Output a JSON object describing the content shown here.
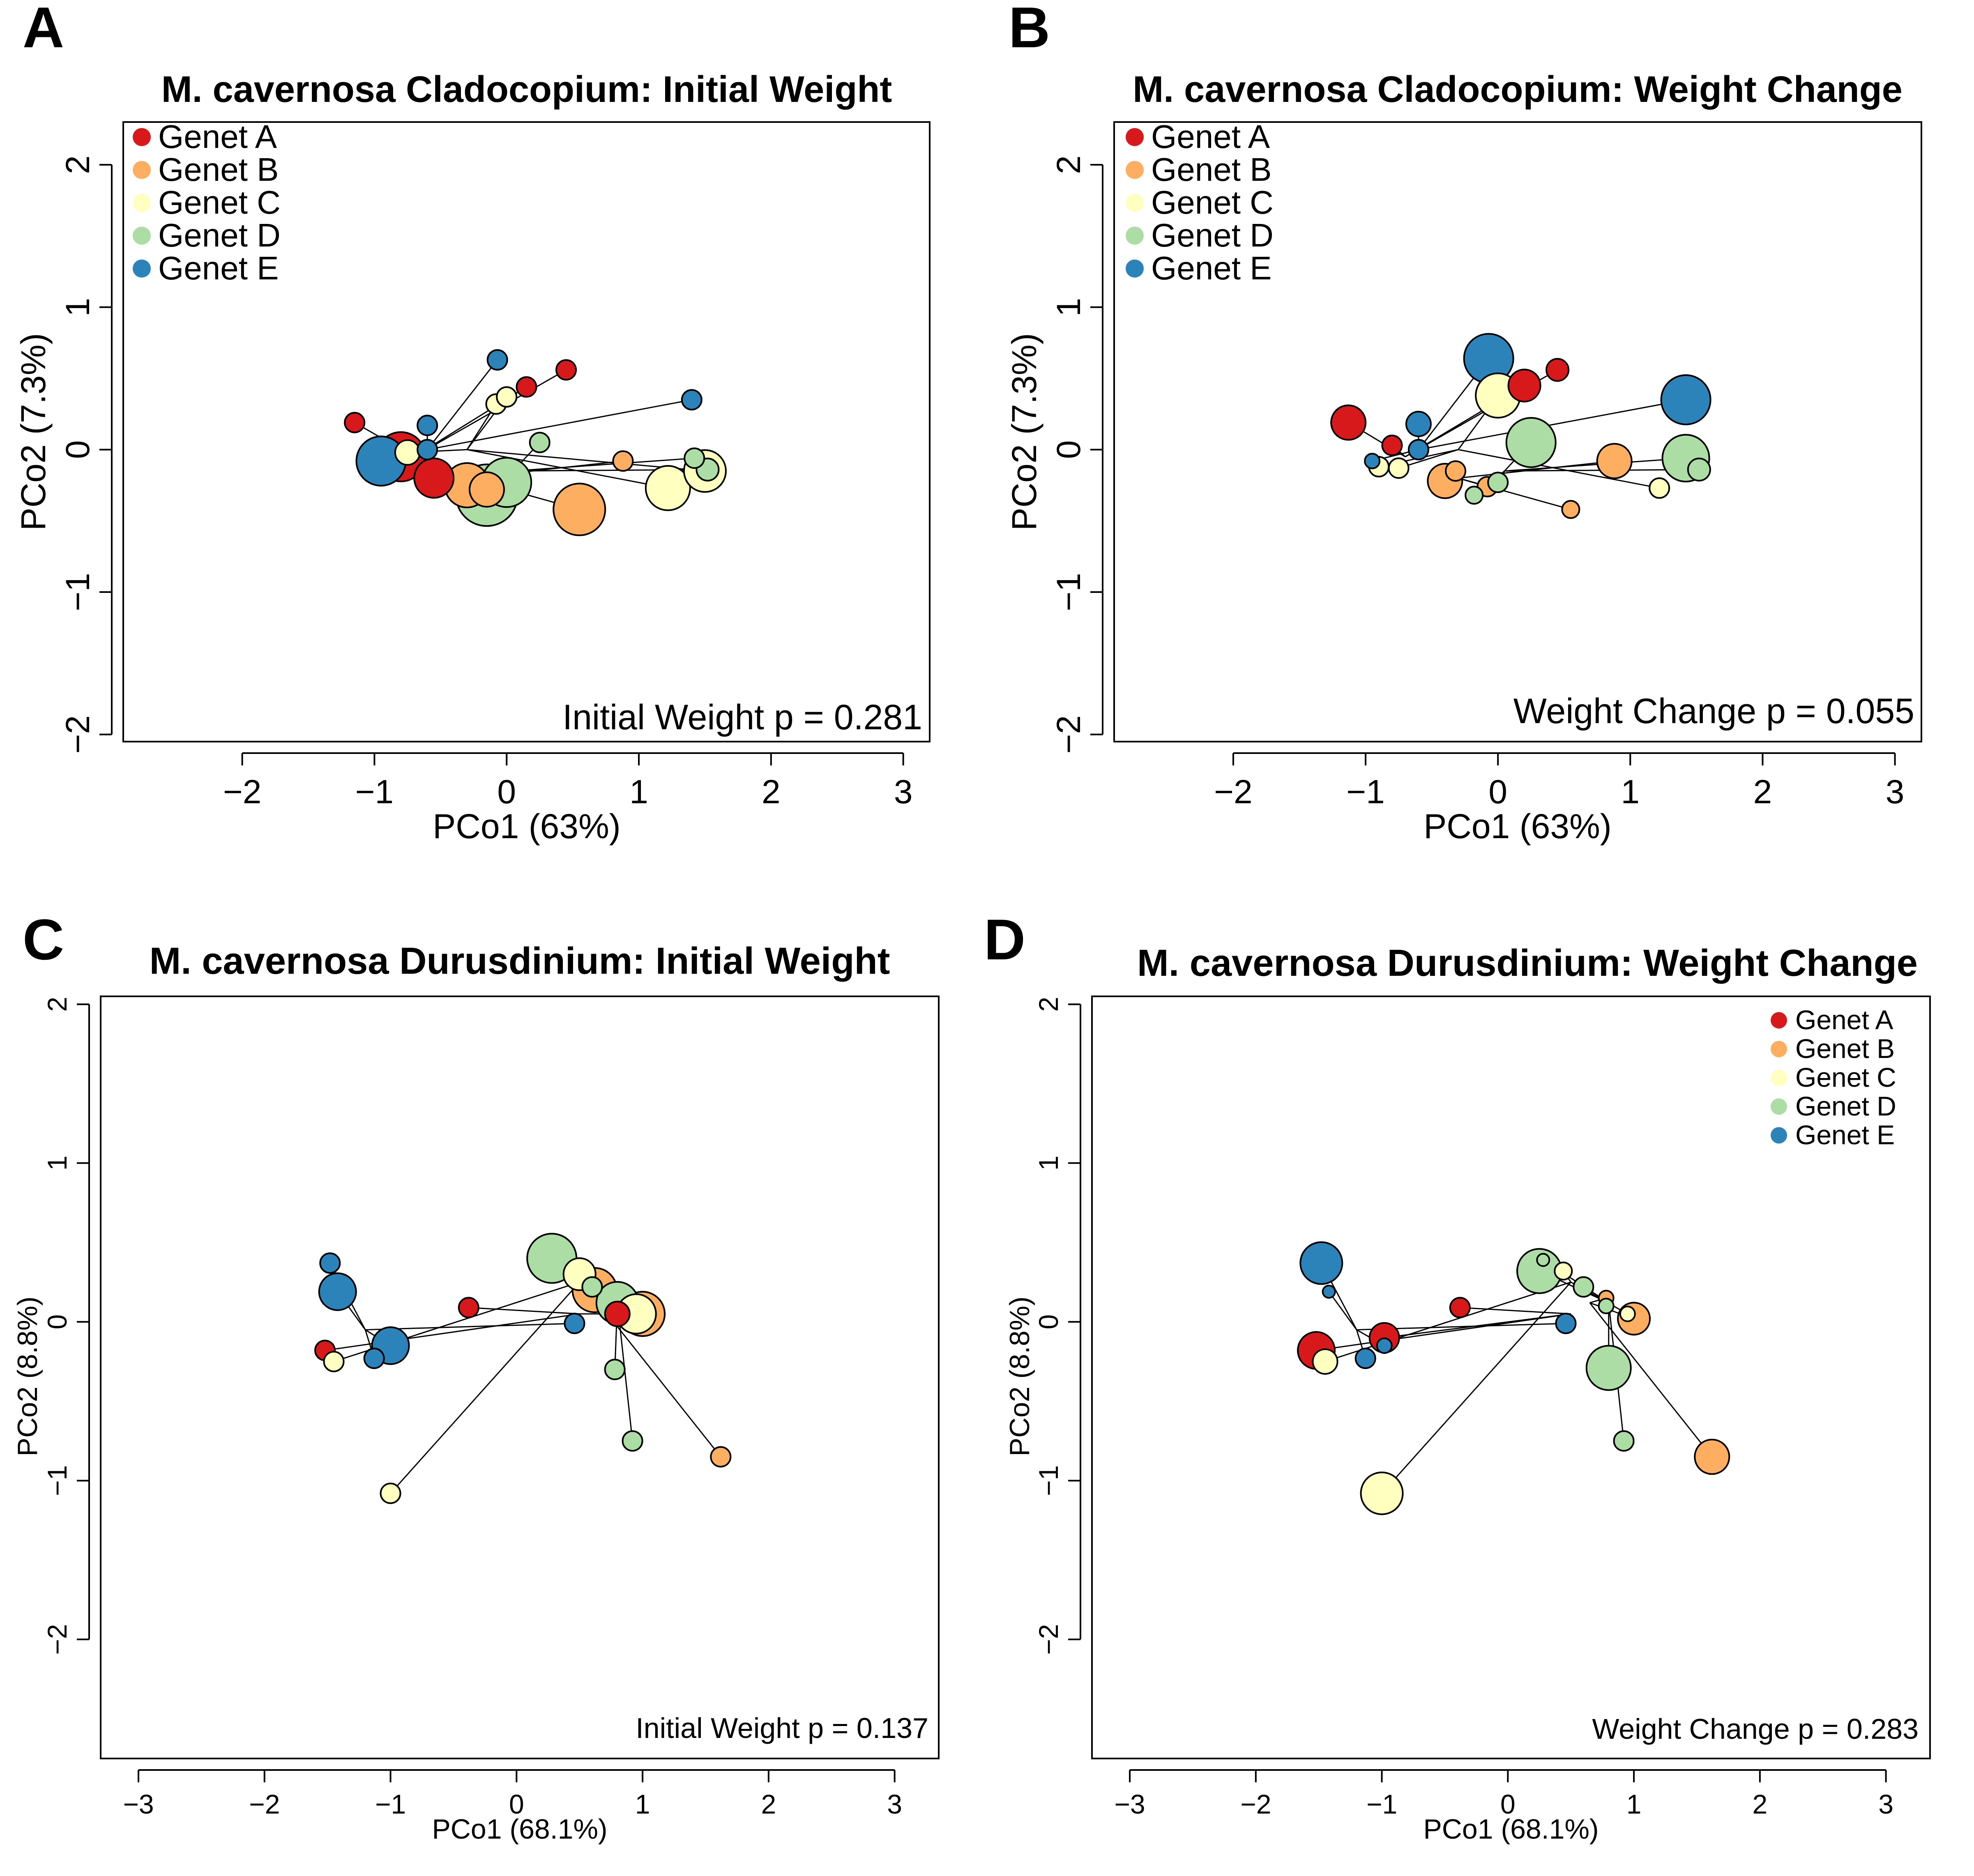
{
  "colors": {
    "Genet A": "#d7191c",
    "Genet B": "#fdae61",
    "Genet C": "#ffffbf",
    "Genet D": "#abdda4",
    "Genet E": "#2b83ba"
  },
  "chart_data": [
    {
      "panel": "A",
      "type": "scatter",
      "title": "M. cavernosa Cladocopium: Initial Weight",
      "xlabel": "PCo1 (63%)",
      "ylabel": "PCo2 (7.3%)",
      "xlim": [
        -2.9,
        3.2
      ],
      "ylim": [
        -2.05,
        2.3
      ],
      "xticks": [
        -2,
        -1,
        0,
        1,
        2,
        3
      ],
      "yticks": [
        -2,
        -1,
        0,
        1,
        2
      ],
      "legend_position": "top-left",
      "legend": [
        "Genet A",
        "Genet B",
        "Genet C",
        "Genet D",
        "Genet E"
      ],
      "annotation": "Initial Weight p =  0.281",
      "grid": false,
      "centroids": [
        {
          "genet": "Genet A",
          "x": -0.7,
          "y": -0.05
        },
        {
          "genet": "Genet B",
          "x": -0.3,
          "y": -0.2
        },
        {
          "genet": "Genet C",
          "x": -0.3,
          "y": 0.0
        },
        {
          "genet": "Genet D",
          "x": 0.05,
          "y": -0.15
        },
        {
          "genet": "Genet E",
          "x": -0.6,
          "y": 0.0
        }
      ],
      "points": [
        {
          "genet": "Genet A",
          "x": -1.15,
          "y": 0.19,
          "size": 0.8
        },
        {
          "genet": "Genet A",
          "x": 0.45,
          "y": 0.56,
          "size": 0.8
        },
        {
          "genet": "Genet A",
          "x": 0.15,
          "y": 0.44,
          "size": 0.8
        },
        {
          "genet": "Genet A",
          "x": -0.8,
          "y": -0.05,
          "size": 2.0
        },
        {
          "genet": "Genet A",
          "x": -0.55,
          "y": -0.2,
          "size": 1.6
        },
        {
          "genet": "Genet B",
          "x": -0.3,
          "y": -0.25,
          "size": 1.8
        },
        {
          "genet": "Genet B",
          "x": -0.15,
          "y": -0.28,
          "size": 1.4
        },
        {
          "genet": "Genet B",
          "x": 0.55,
          "y": -0.42,
          "size": 2.1
        },
        {
          "genet": "Genet B",
          "x": 0.88,
          "y": -0.08,
          "size": 0.8
        },
        {
          "genet": "Genet C",
          "x": -0.75,
          "y": -0.02,
          "size": 1.0
        },
        {
          "genet": "Genet C",
          "x": -0.08,
          "y": 0.32,
          "size": 0.8
        },
        {
          "genet": "Genet C",
          "x": 0.0,
          "y": 0.37,
          "size": 0.8
        },
        {
          "genet": "Genet C",
          "x": 1.22,
          "y": -0.27,
          "size": 1.8
        },
        {
          "genet": "Genet C",
          "x": 1.5,
          "y": -0.15,
          "size": 1.7
        },
        {
          "genet": "Genet D",
          "x": 0.25,
          "y": 0.05,
          "size": 0.8
        },
        {
          "genet": "Genet D",
          "x": 0.0,
          "y": -0.23,
          "size": 2.0
        },
        {
          "genet": "Genet D",
          "x": -0.15,
          "y": -0.32,
          "size": 2.5
        },
        {
          "genet": "Genet D",
          "x": 1.42,
          "y": -0.06,
          "size": 0.8
        },
        {
          "genet": "Genet D",
          "x": 1.52,
          "y": -0.14,
          "size": 0.9
        },
        {
          "genet": "Genet E",
          "x": -0.07,
          "y": 0.63,
          "size": 0.8
        },
        {
          "genet": "Genet E",
          "x": -0.6,
          "y": 0.17,
          "size": 0.8
        },
        {
          "genet": "Genet E",
          "x": -0.6,
          "y": 0.0,
          "size": 0.8
        },
        {
          "genet": "Genet E",
          "x": -0.95,
          "y": -0.08,
          "size": 2.0
        },
        {
          "genet": "Genet E",
          "x": 1.4,
          "y": 0.35,
          "size": 0.8
        }
      ]
    },
    {
      "panel": "B",
      "type": "scatter",
      "title": "M. cavernosa Cladocopium: Weight Change",
      "xlabel": "PCo1 (63%)",
      "ylabel": "PCo2 (7.3%)",
      "xlim": [
        -2.9,
        3.2
      ],
      "ylim": [
        -2.05,
        2.3
      ],
      "xticks": [
        -2,
        -1,
        0,
        1,
        2,
        3
      ],
      "yticks": [
        -2,
        -1,
        0,
        1,
        2
      ],
      "legend_position": "top-left",
      "legend": [
        "Genet A",
        "Genet B",
        "Genet C",
        "Genet D",
        "Genet E"
      ],
      "annotation": "Weight Change p =  0.055",
      "grid": false,
      "centroids": [
        {
          "genet": "Genet A",
          "x": -0.7,
          "y": -0.05
        },
        {
          "genet": "Genet B",
          "x": -0.3,
          "y": -0.2
        },
        {
          "genet": "Genet C",
          "x": -0.3,
          "y": 0.0
        },
        {
          "genet": "Genet D",
          "x": 0.05,
          "y": -0.15
        },
        {
          "genet": "Genet E",
          "x": -0.6,
          "y": 0.0
        }
      ],
      "points": [
        {
          "genet": "Genet A",
          "x": -1.13,
          "y": 0.19,
          "size": 1.4
        },
        {
          "genet": "Genet A",
          "x": 0.45,
          "y": 0.56,
          "size": 0.9
        },
        {
          "genet": "Genet A",
          "x": 0.2,
          "y": 0.45,
          "size": 1.3
        },
        {
          "genet": "Genet A",
          "x": -0.8,
          "y": 0.03,
          "size": 0.8
        },
        {
          "genet": "Genet B",
          "x": -0.4,
          "y": -0.22,
          "size": 1.4
        },
        {
          "genet": "Genet B",
          "x": -0.32,
          "y": -0.15,
          "size": 0.8
        },
        {
          "genet": "Genet B",
          "x": -0.08,
          "y": -0.26,
          "size": 0.8
        },
        {
          "genet": "Genet B",
          "x": 0.55,
          "y": -0.42,
          "size": 0.7
        },
        {
          "genet": "Genet B",
          "x": 0.88,
          "y": -0.08,
          "size": 1.4
        },
        {
          "genet": "Genet C",
          "x": -0.9,
          "y": -0.12,
          "size": 0.8
        },
        {
          "genet": "Genet C",
          "x": -0.75,
          "y": -0.13,
          "size": 0.8
        },
        {
          "genet": "Genet C",
          "x": 0.0,
          "y": 0.38,
          "size": 1.8
        },
        {
          "genet": "Genet C",
          "x": 1.22,
          "y": -0.27,
          "size": 0.8
        },
        {
          "genet": "Genet D",
          "x": 0.25,
          "y": 0.05,
          "size": 2.0
        },
        {
          "genet": "Genet D",
          "x": 0.0,
          "y": -0.23,
          "size": 0.8
        },
        {
          "genet": "Genet D",
          "x": -0.18,
          "y": -0.32,
          "size": 0.7
        },
        {
          "genet": "Genet D",
          "x": 1.42,
          "y": -0.06,
          "size": 1.9
        },
        {
          "genet": "Genet D",
          "x": 1.52,
          "y": -0.14,
          "size": 0.9
        },
        {
          "genet": "Genet E",
          "x": -0.07,
          "y": 0.64,
          "size": 2.0
        },
        {
          "genet": "Genet E",
          "x": -0.6,
          "y": 0.18,
          "size": 1.0
        },
        {
          "genet": "Genet E",
          "x": -0.6,
          "y": 0.0,
          "size": 0.8
        },
        {
          "genet": "Genet E",
          "x": -0.95,
          "y": -0.08,
          "size": 0.6
        },
        {
          "genet": "Genet E",
          "x": 1.42,
          "y": 0.35,
          "size": 2.0
        }
      ]
    },
    {
      "panel": "C",
      "type": "scatter",
      "title": "M. cavernosa Durusdinium: Initial Weight",
      "xlabel": "PCo1 (68.1%)",
      "ylabel": "PCo2 (8.8%)",
      "xlim": [
        -3.3,
        3.35
      ],
      "ylim": [
        -2.75,
        2.05
      ],
      "xticks": [
        -3,
        -2,
        -1,
        0,
        1,
        2,
        3
      ],
      "yticks": [
        -2,
        -1,
        0,
        1,
        2
      ],
      "legend_position": "none",
      "legend": [],
      "annotation": "Initial Weight p =  0.137",
      "grid": false,
      "centroids": [
        {
          "genet": "Genet A",
          "x": 0.5,
          "y": 0.05
        },
        {
          "genet": "Genet B",
          "x": 0.65,
          "y": 0.12
        },
        {
          "genet": "Genet C",
          "x": 0.5,
          "y": 0.25
        },
        {
          "genet": "Genet D",
          "x": 0.8,
          "y": 0.12
        },
        {
          "genet": "Genet E",
          "x": -1.2,
          "y": -0.05
        }
      ],
      "points": [
        {
          "genet": "Genet A",
          "x": -0.38,
          "y": 0.09,
          "size": 0.8
        },
        {
          "genet": "Genet A",
          "x": -1.52,
          "y": -0.18,
          "size": 0.8
        },
        {
          "genet": "Genet A",
          "x": 0.8,
          "y": 0.05,
          "size": 1.0
        },
        {
          "genet": "Genet B",
          "x": 0.62,
          "y": 0.2,
          "size": 1.8
        },
        {
          "genet": "Genet B",
          "x": 1.0,
          "y": 0.05,
          "size": 1.8
        },
        {
          "genet": "Genet B",
          "x": 1.62,
          "y": -0.85,
          "size": 0.8
        },
        {
          "genet": "Genet C",
          "x": -1.45,
          "y": -0.25,
          "size": 0.8
        },
        {
          "genet": "Genet C",
          "x": -1.0,
          "y": -1.08,
          "size": 0.8
        },
        {
          "genet": "Genet C",
          "x": 0.5,
          "y": 0.3,
          "size": 1.3
        },
        {
          "genet": "Genet C",
          "x": 0.95,
          "y": 0.05,
          "size": 1.6
        },
        {
          "genet": "Genet D",
          "x": 0.28,
          "y": 0.4,
          "size": 2.0
        },
        {
          "genet": "Genet D",
          "x": 0.6,
          "y": 0.22,
          "size": 0.8
        },
        {
          "genet": "Genet D",
          "x": 0.8,
          "y": 0.12,
          "size": 1.7
        },
        {
          "genet": "Genet D",
          "x": 0.78,
          "y": -0.3,
          "size": 0.8
        },
        {
          "genet": "Genet D",
          "x": 0.92,
          "y": -0.75,
          "size": 0.8
        },
        {
          "genet": "Genet E",
          "x": -1.48,
          "y": 0.37,
          "size": 0.8
        },
        {
          "genet": "Genet E",
          "x": -1.42,
          "y": 0.19,
          "size": 1.5
        },
        {
          "genet": "Genet E",
          "x": -1.13,
          "y": -0.23,
          "size": 0.8
        },
        {
          "genet": "Genet E",
          "x": -1.0,
          "y": -0.15,
          "size": 1.5
        },
        {
          "genet": "Genet E",
          "x": 0.46,
          "y": -0.01,
          "size": 0.8
        }
      ]
    },
    {
      "panel": "D",
      "type": "scatter",
      "title": "M. cavernosa Durusdinium: Weight Change",
      "xlabel": "PCo1 (68.1%)",
      "ylabel": "PCo2 (8.8%)",
      "xlim": [
        -3.3,
        3.35
      ],
      "ylim": [
        -2.75,
        2.05
      ],
      "xticks": [
        -3,
        -2,
        -1,
        0,
        1,
        2,
        3
      ],
      "yticks": [
        -2,
        -1,
        0,
        1,
        2
      ],
      "legend_position": "top-right",
      "legend": [
        "Genet A",
        "Genet B",
        "Genet C",
        "Genet D",
        "Genet E"
      ],
      "annotation": "Weight Change p =  0.283",
      "grid": false,
      "centroids": [
        {
          "genet": "Genet A",
          "x": 0.5,
          "y": 0.05
        },
        {
          "genet": "Genet B",
          "x": 0.65,
          "y": 0.12
        },
        {
          "genet": "Genet C",
          "x": 0.5,
          "y": 0.25
        },
        {
          "genet": "Genet D",
          "x": 0.8,
          "y": 0.12
        },
        {
          "genet": "Genet E",
          "x": -1.2,
          "y": -0.05
        }
      ],
      "points": [
        {
          "genet": "Genet A",
          "x": -0.38,
          "y": 0.09,
          "size": 0.8
        },
        {
          "genet": "Genet A",
          "x": -1.52,
          "y": -0.18,
          "size": 1.5
        },
        {
          "genet": "Genet A",
          "x": -0.98,
          "y": -0.1,
          "size": 1.2
        },
        {
          "genet": "Genet B",
          "x": 0.78,
          "y": 0.15,
          "size": 0.6
        },
        {
          "genet": "Genet B",
          "x": 1.0,
          "y": 0.02,
          "size": 1.3
        },
        {
          "genet": "Genet B",
          "x": 1.62,
          "y": -0.85,
          "size": 1.4
        },
        {
          "genet": "Genet C",
          "x": -1.45,
          "y": -0.25,
          "size": 1.0
        },
        {
          "genet": "Genet C",
          "x": -1.0,
          "y": -1.08,
          "size": 1.7
        },
        {
          "genet": "Genet C",
          "x": 0.44,
          "y": 0.32,
          "size": 0.7
        },
        {
          "genet": "Genet C",
          "x": 0.95,
          "y": 0.05,
          "size": 0.6
        },
        {
          "genet": "Genet D",
          "x": 0.25,
          "y": 0.32,
          "size": 1.8
        },
        {
          "genet": "Genet D",
          "x": 0.28,
          "y": 0.39,
          "size": 0.5
        },
        {
          "genet": "Genet D",
          "x": 0.6,
          "y": 0.22,
          "size": 0.8
        },
        {
          "genet": "Genet D",
          "x": 0.78,
          "y": 0.1,
          "size": 0.6
        },
        {
          "genet": "Genet D",
          "x": 0.8,
          "y": -0.29,
          "size": 1.8
        },
        {
          "genet": "Genet D",
          "x": 0.92,
          "y": -0.75,
          "size": 0.8
        },
        {
          "genet": "Genet E",
          "x": -1.48,
          "y": 0.37,
          "size": 1.7
        },
        {
          "genet": "Genet E",
          "x": -1.42,
          "y": 0.19,
          "size": 0.5
        },
        {
          "genet": "Genet E",
          "x": -1.13,
          "y": -0.23,
          "size": 0.8
        },
        {
          "genet": "Genet E",
          "x": -0.98,
          "y": -0.15,
          "size": 0.6
        },
        {
          "genet": "Genet E",
          "x": 0.46,
          "y": -0.01,
          "size": 0.8
        }
      ]
    }
  ]
}
